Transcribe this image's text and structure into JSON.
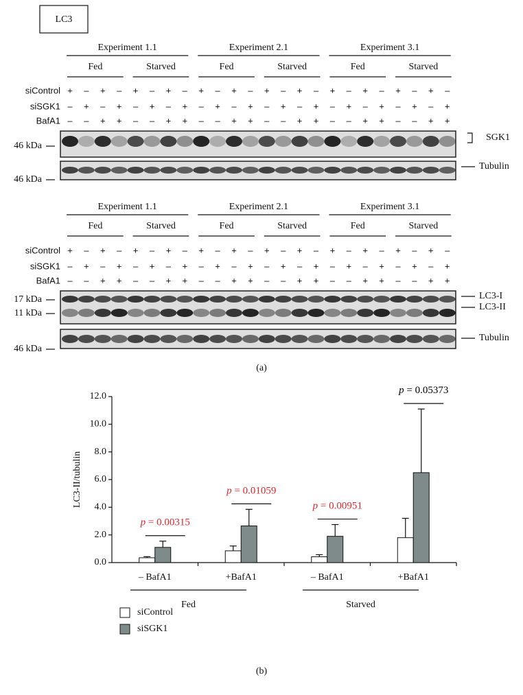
{
  "panel_label": "LC3",
  "blot_sgk1": {
    "experiments": [
      "Experiment 1.1",
      "Experiment 2.1",
      "Experiment 3.1"
    ],
    "conditions": [
      "Fed",
      "Starved",
      "Fed",
      "Starved",
      "Fed",
      "Starved"
    ],
    "rows": [
      {
        "label": "siControl",
        "signs": [
          "+",
          "–",
          "+",
          "–",
          "+",
          "–",
          "+",
          "–",
          "+",
          "–",
          "+",
          "–",
          "+",
          "–",
          "+",
          "–",
          "+",
          "–",
          "+",
          "–",
          "+",
          "–",
          "+",
          "–"
        ]
      },
      {
        "label": "siSGK1",
        "signs": [
          "–",
          "+",
          "–",
          "+",
          "–",
          "+",
          "–",
          "+",
          "–",
          "+",
          "–",
          "+",
          "–",
          "+",
          "–",
          "+",
          "–",
          "+",
          "–",
          "+",
          "–",
          "+",
          "–",
          "+"
        ]
      },
      {
        "label": "BafA1",
        "signs": [
          "–",
          "–",
          "+",
          "+",
          "–",
          "–",
          "+",
          "+",
          "–",
          "–",
          "+",
          "+",
          "–",
          "–",
          "+",
          "+",
          "–",
          "–",
          "+",
          "+",
          "–",
          "–",
          "+",
          "+"
        ]
      }
    ],
    "markers": [
      "46 kDa",
      "46 kDa"
    ],
    "bands": [
      "SGK1",
      "Tubulin"
    ]
  },
  "blot_lc3": {
    "experiments": [
      "Experiment 1.1",
      "Experiment 2.1",
      "Experiment 3.1"
    ],
    "conditions": [
      "Fed",
      "Starved",
      "Fed",
      "Starved",
      "Fed",
      "Starved"
    ],
    "rows": [
      {
        "label": "siControl",
        "signs": [
          "+",
          "–",
          "+",
          "–",
          "+",
          "–",
          "+",
          "–",
          "+",
          "–",
          "+",
          "–",
          "+",
          "–",
          "+",
          "–",
          "+",
          "–",
          "+",
          "–",
          "+",
          "–",
          "+",
          "–"
        ]
      },
      {
        "label": "siSGK1",
        "signs": [
          "–",
          "+",
          "–",
          "+",
          "–",
          "+",
          "–",
          "+",
          "–",
          "+",
          "–",
          "+",
          "–",
          "+",
          "–",
          "+",
          "–",
          "+",
          "–",
          "+",
          "–",
          "+",
          "–",
          "+"
        ]
      },
      {
        "label": "BafA1",
        "signs": [
          "–",
          "–",
          "+",
          "+",
          "–",
          "–",
          "+",
          "+",
          "–",
          "–",
          "+",
          "+",
          "–",
          "–",
          "+",
          "+",
          "–",
          "–",
          "+",
          "+",
          "–",
          "–",
          "+",
          "+"
        ]
      }
    ],
    "markers": [
      "17 kDa",
      "11 kDa",
      "46 kDa"
    ],
    "bands": [
      "LC3-I",
      "LC3-II",
      "Tubulin"
    ]
  },
  "caption_a": "(a)",
  "chart_data": {
    "type": "bar",
    "ylabel": "LC3-II/tubulin",
    "categories": [
      "– BafA1",
      "+BafA1",
      "– BafA1",
      "+BafA1"
    ],
    "groups": [
      "Fed",
      "Starved"
    ],
    "series": [
      {
        "name": "siControl",
        "color": "#ffffff",
        "values": [
          0.35,
          0.85,
          0.42,
          1.8
        ],
        "errors": [
          0.08,
          0.35,
          0.15,
          1.4
        ]
      },
      {
        "name": "siSGK1",
        "color": "#7f8a8a",
        "values": [
          1.1,
          2.65,
          1.9,
          6.5
        ],
        "errors": [
          0.45,
          1.2,
          0.85,
          4.6
        ]
      }
    ],
    "p_values": [
      "p = 0.00315",
      "p = 0.01059",
      "p = 0.00951",
      "p = 0.05373"
    ],
    "p_value_colors": [
      "#e0252b",
      "#e0252b",
      "#e0252b",
      "#000000"
    ],
    "ylim": [
      0,
      12
    ],
    "yticks": [
      {
        "value": 0,
        "label": "0.0"
      },
      {
        "value": 2,
        "label": "2.0"
      },
      {
        "value": 4,
        "label": "4.0"
      },
      {
        "value": 6,
        "label": "6.0"
      },
      {
        "value": 8,
        "label": "8.0"
      },
      {
        "value": 10,
        "label": "10.0"
      },
      {
        "value": 12,
        "label": "12.0"
      }
    ]
  },
  "caption_b": "(b)"
}
